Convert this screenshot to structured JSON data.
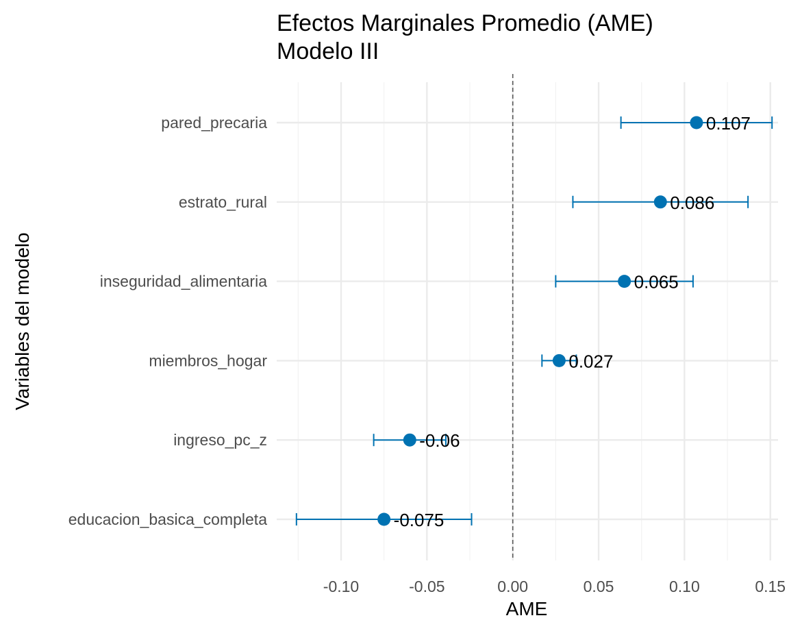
{
  "chart_data": {
    "type": "scatter",
    "title": "Efectos Marginales Promedio (AME)",
    "subtitle": "Modelo III",
    "xlabel": "AME",
    "ylabel": "Variables del modelo",
    "xlim": [
      -0.1375,
      0.1545
    ],
    "x_ticks": [
      -0.1,
      -0.05,
      0.0,
      0.05,
      0.1,
      0.15
    ],
    "x_tick_labels": [
      "-0.10",
      "-0.05",
      "0.00",
      "0.05",
      "0.10",
      "0.15"
    ],
    "reference_line": 0,
    "grid": true,
    "point_color": "#0072B2",
    "reference_line_color": "#595959",
    "categories": [
      "pared_precaria",
      "estrato_rural",
      "inseguridad_alimentaria",
      "miembros_hogar",
      "ingreso_pc_z",
      "educacion_basica_completa"
    ],
    "points": [
      {
        "variable": "pared_precaria",
        "ame": 0.107,
        "ci_low": 0.063,
        "ci_high": 0.151,
        "label": "0.107"
      },
      {
        "variable": "estrato_rural",
        "ame": 0.086,
        "ci_low": 0.035,
        "ci_high": 0.137,
        "label": "0.086"
      },
      {
        "variable": "inseguridad_alimentaria",
        "ame": 0.065,
        "ci_low": 0.025,
        "ci_high": 0.105,
        "label": "0.065"
      },
      {
        "variable": "miembros_hogar",
        "ame": 0.027,
        "ci_low": 0.017,
        "ci_high": 0.037,
        "label": "0.027"
      },
      {
        "variable": "ingreso_pc_z",
        "ame": -0.06,
        "ci_low": -0.081,
        "ci_high": -0.039,
        "label": "-0.06"
      },
      {
        "variable": "educacion_basica_completa",
        "ame": -0.075,
        "ci_low": -0.126,
        "ci_high": -0.024,
        "label": "-0.075"
      }
    ]
  }
}
